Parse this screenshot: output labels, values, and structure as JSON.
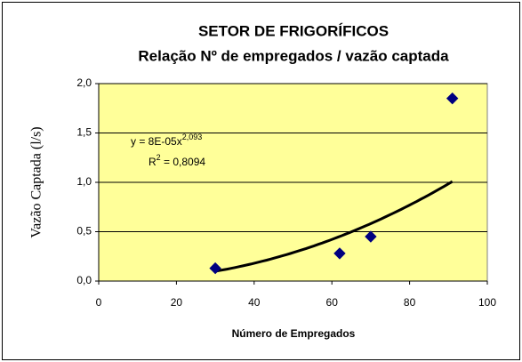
{
  "chart_data": {
    "type": "scatter",
    "title": "SETOR DE FRIGORÍFICOS",
    "subtitle": "Relação Nº de empregados /  vazão captada",
    "x_label": "Número de Empregados",
    "y_label": "Vazão Captada (l/s)",
    "x": [
      30,
      62,
      70,
      91
    ],
    "values": [
      0.13,
      0.28,
      0.45,
      1.85
    ],
    "color": "#000080",
    "background": "#FFFF99",
    "xlim": [
      0,
      100
    ],
    "xticks": [
      0,
      20,
      40,
      60,
      80,
      100
    ],
    "ylim": [
      0,
      2
    ],
    "yticks": [
      {
        "value": 0,
        "label": "0,0"
      },
      {
        "value": 0.5,
        "label": "0,5"
      },
      {
        "value": 1,
        "label": "1,0"
      },
      {
        "value": 1.5,
        "label": "1,5"
      },
      {
        "value": 2,
        "label": "2,0"
      }
    ],
    "grid": true,
    "trendline": {
      "type": "power",
      "coefficient": 8e-05,
      "exponent": 2.093,
      "equation": "y = 8E-05x",
      "equation_exponent": "2,093",
      "r2_symbol": "R",
      "r2_power": "2",
      "r2_text": " = 0,8094"
    }
  }
}
